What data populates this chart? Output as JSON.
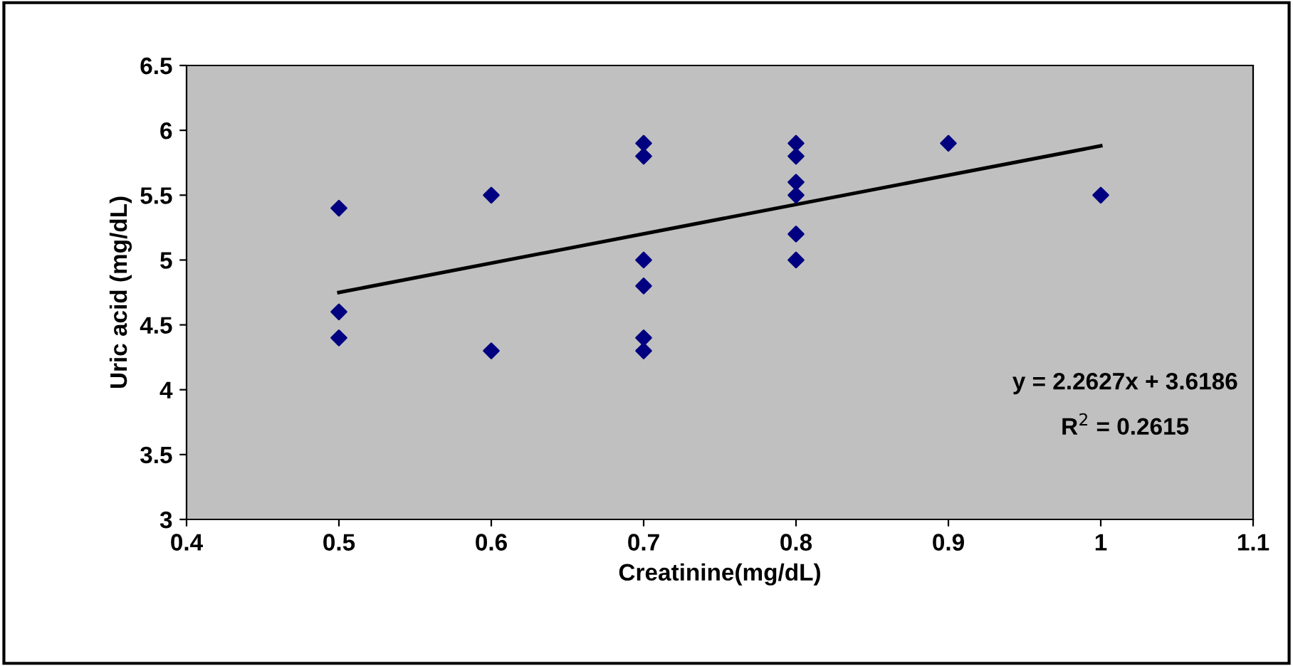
{
  "chart_data": {
    "type": "scatter",
    "xlabel": "Creatinine(mg/dL)",
    "ylabel": "Uric acid (mg/dL)",
    "xlim": [
      0.4,
      1.1
    ],
    "xticks": [
      0.4,
      0.5,
      0.6,
      0.7,
      0.8,
      0.9,
      1,
      1.1
    ],
    "ylim": [
      3,
      6.5
    ],
    "yticks": [
      3,
      3.5,
      4,
      4.5,
      5,
      5.5,
      6,
      6.5
    ],
    "grid": false,
    "legend": false,
    "series": [
      {
        "marker": "diamond",
        "color": "#000080",
        "x": [
          0.5,
          0.5,
          0.5,
          0.6,
          0.6,
          0.7,
          0.7,
          0.7,
          0.7,
          0.7,
          0.7,
          0.8,
          0.8,
          0.8,
          0.8,
          0.8,
          0.8,
          0.9,
          1.0
        ],
        "values": [
          5.4,
          4.6,
          4.4,
          5.5,
          4.3,
          5.9,
          5.8,
          5.0,
          4.8,
          4.4,
          4.3,
          5.9,
          5.8,
          5.6,
          5.5,
          5.2,
          5.0,
          5.9,
          5.5
        ]
      },
      {
        "type": "line",
        "marker": "none",
        "color": "#000000",
        "x": [
          0.5,
          1.0
        ],
        "values": [
          4.75,
          5.88
        ]
      }
    ],
    "annotations": [
      "y = 2.2627x + 3.6186",
      "R$^{2}$ = 0.2615"
    ]
  }
}
